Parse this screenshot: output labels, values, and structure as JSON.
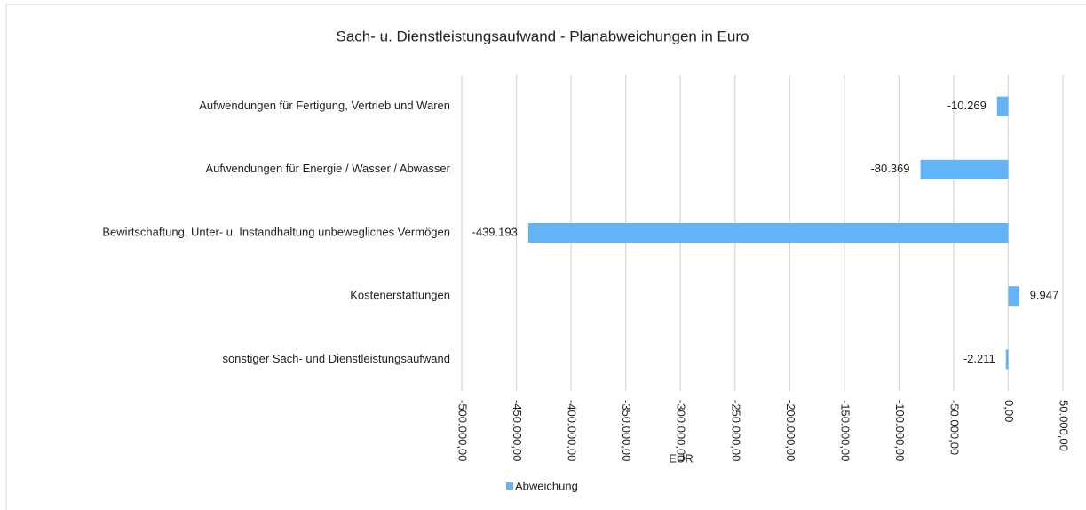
{
  "chart_data": {
    "type": "bar",
    "orientation": "horizontal",
    "title": "Sach- u. Dienstleistungsaufwand  - Planabweichungen in Euro",
    "x_label": "EUR",
    "categories": [
      "Aufwendungen für Fertigung, Vertrieb und Waren",
      "Aufwendungen für Energie / Wasser / Abwasser",
      "Bewirtschaftung, Unter- u. Instandhaltung unbewegliches Vermögen",
      "Kostenerstattungen",
      "sonstiger Sach- und Dienstleistungsaufwand"
    ],
    "series": [
      {
        "name": "Abweichung",
        "color": "#63b4f6",
        "values": [
          -10269,
          -80369,
          -439193,
          9947,
          -2211
        ],
        "value_labels": [
          "-10.269",
          "-80.369",
          "-439.193",
          "9.947",
          "-2.211"
        ]
      }
    ],
    "xlim": [
      -500000,
      50000
    ],
    "xticks": [
      {
        "value": -500000,
        "label": "-500.000,00"
      },
      {
        "value": -450000,
        "label": "-450.000,00"
      },
      {
        "value": -400000,
        "label": "-400.000,00"
      },
      {
        "value": -350000,
        "label": "-350.000,00"
      },
      {
        "value": -300000,
        "label": "-300.000,00"
      },
      {
        "value": -250000,
        "label": "-250.000,00"
      },
      {
        "value": -200000,
        "label": "-200.000,00"
      },
      {
        "value": -150000,
        "label": "-150.000,00"
      },
      {
        "value": -100000,
        "label": "-100.000,00"
      },
      {
        "value": -50000,
        "label": "-50.000,00"
      },
      {
        "value": 0,
        "label": "0,00"
      },
      {
        "value": 50000,
        "label": "50.000,00"
      }
    ],
    "grid": true,
    "legend": "bottom"
  }
}
